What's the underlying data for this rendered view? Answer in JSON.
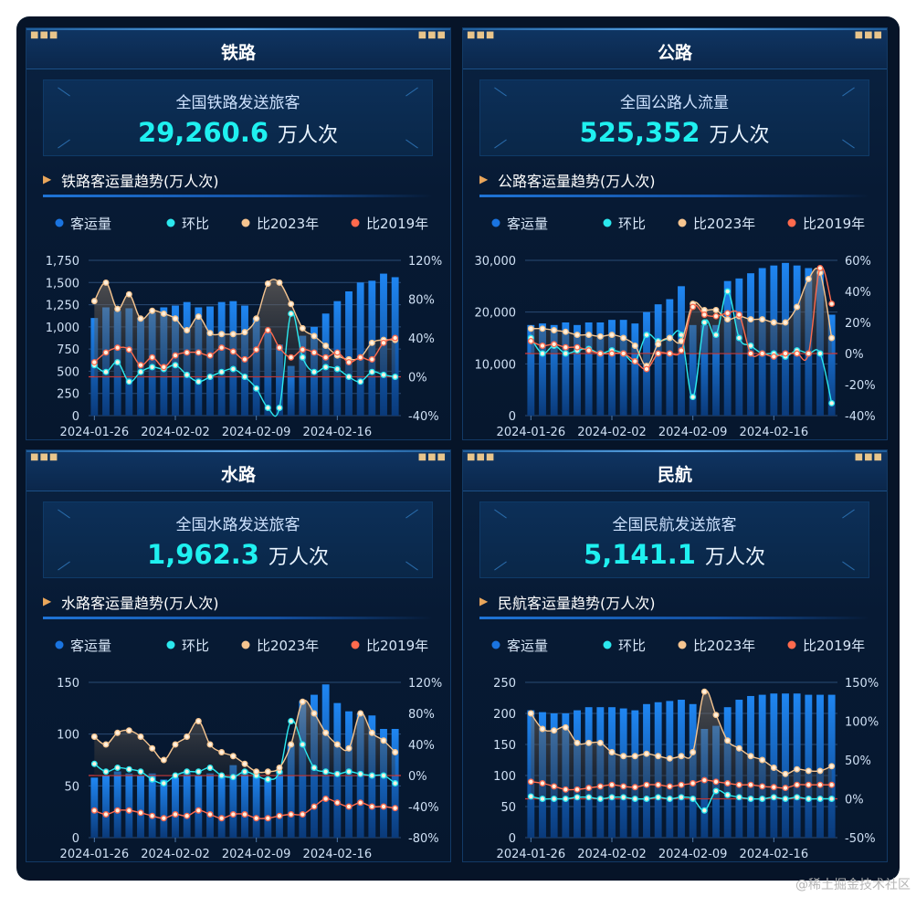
{
  "watermark": "@稀土掘金技术社区",
  "legend_labels": [
    "客运量",
    "环比",
    "比2023年",
    "比2019年"
  ],
  "colors": {
    "bar": "#1a74e0",
    "mom": "#2be8ee",
    "y2023": "#f6c590",
    "y2019": "#ff6a4d",
    "grid": "#2a4a74"
  },
  "panels": [
    {
      "title": "铁路",
      "stat_label": "全国铁路发送旅客",
      "stat_value": "29,260.6",
      "stat_unit": "万人次",
      "sub_title": "铁路客运量趋势(万人次)"
    },
    {
      "title": "公路",
      "stat_label": "全国公路人流量",
      "stat_value": "525,352",
      "stat_unit": "万人次",
      "sub_title": "公路客运量趋势(万人次)"
    },
    {
      "title": "水路",
      "stat_label": "全国水路发送旅客",
      "stat_value": "1,962.3",
      "stat_unit": "万人次",
      "sub_title": "水路客运量趋势(万人次)"
    },
    {
      "title": "民航",
      "stat_label": "全国民航发送旅客",
      "stat_value": "5,141.1",
      "stat_unit": "万人次",
      "sub_title": "民航客运量趋势(万人次)"
    }
  ],
  "chart_data": [
    {
      "type": "bar",
      "x_tick_labels": [
        "2024-01-26",
        "2024-02-02",
        "2024-02-09",
        "2024-02-16"
      ],
      "ylim": [
        0,
        1750
      ],
      "y_ticks": [
        "0",
        "250",
        "500",
        "750",
        "1,000",
        "1,250",
        "1,500",
        "1,750"
      ],
      "y2lim": [
        -40,
        120
      ],
      "y2_ticks": [
        "-40%",
        "0%",
        "40%",
        "80%",
        "120%"
      ],
      "series": [
        {
          "name": "客运量",
          "values": [
            1100,
            1220,
            1180,
            1210,
            1100,
            1160,
            1220,
            1240,
            1280,
            1220,
            1230,
            1280,
            1290,
            1240,
            1100,
            940,
            800,
            560,
            900,
            1000,
            1150,
            1290,
            1400,
            1500,
            1520,
            1600,
            1560
          ]
        },
        {
          "name": "环比",
          "values": [
            12,
            5,
            15,
            -5,
            5,
            10,
            8,
            12,
            2,
            -5,
            0,
            5,
            8,
            0,
            -12,
            -32,
            -32,
            65,
            20,
            5,
            10,
            8,
            0,
            -5,
            5,
            2,
            0
          ]
        },
        {
          "name": "比2023年",
          "values": [
            78,
            97,
            70,
            85,
            60,
            68,
            65,
            60,
            48,
            62,
            45,
            44,
            44,
            46,
            60,
            96,
            97,
            75,
            50,
            42,
            32,
            22,
            18,
            20,
            35,
            38,
            38
          ]
        },
        {
          "name": "比2019年",
          "values": [
            15,
            25,
            30,
            28,
            12,
            20,
            10,
            22,
            25,
            25,
            22,
            30,
            26,
            18,
            28,
            48,
            30,
            20,
            28,
            25,
            20,
            25,
            15,
            20,
            18,
            35,
            40
          ]
        }
      ]
    },
    {
      "type": "bar",
      "x_tick_labels": [
        "2024-01-26",
        "2024-02-02",
        "2024-02-09",
        "2024-02-16"
      ],
      "ylim": [
        0,
        30000
      ],
      "y_ticks": [
        "0",
        "10,000",
        "20,000",
        "30,000"
      ],
      "y2lim": [
        -40,
        60
      ],
      "y2_ticks": [
        "-40%",
        "-20%",
        "0%",
        "20%",
        "40%",
        "60%"
      ],
      "series": [
        {
          "name": "客运量",
          "values": [
            17500,
            17800,
            17500,
            18000,
            17500,
            18000,
            18000,
            18500,
            18500,
            17800,
            20000,
            21500,
            22500,
            25000,
            17500,
            17500,
            17500,
            26000,
            26500,
            27500,
            28500,
            29000,
            29500,
            29000,
            28500,
            28000,
            19500
          ]
        },
        {
          "name": "环比",
          "values": [
            10,
            0,
            5,
            0,
            2,
            3,
            0,
            2,
            0,
            -5,
            12,
            8,
            10,
            12,
            -28,
            20,
            12,
            40,
            10,
            5,
            0,
            0,
            -2,
            2,
            0,
            0,
            -32
          ]
        },
        {
          "name": "比2023年",
          "values": [
            16,
            16,
            15,
            14,
            12,
            12,
            11,
            12,
            10,
            5,
            -8,
            6,
            10,
            8,
            32,
            28,
            28,
            22,
            24,
            22,
            22,
            20,
            20,
            30,
            48,
            52,
            10
          ]
        },
        {
          "name": "比2019年",
          "values": [
            8,
            5,
            6,
            4,
            4,
            2,
            0,
            0,
            0,
            -5,
            -10,
            0,
            0,
            2,
            30,
            25,
            24,
            26,
            25,
            0,
            0,
            -2,
            0,
            0,
            0,
            55,
            32
          ]
        }
      ]
    },
    {
      "type": "bar",
      "x_tick_labels": [
        "2024-01-26",
        "2024-02-02",
        "2024-02-09",
        "2024-02-16"
      ],
      "ylim": [
        0,
        150
      ],
      "y_ticks": [
        "0",
        "50",
        "100",
        "150"
      ],
      "y2lim": [
        -80,
        120
      ],
      "y2_ticks": [
        "-80%",
        "-40%",
        "0%",
        "40%",
        "80%",
        "120%"
      ],
      "series": [
        {
          "name": "客运量",
          "values": [
            58,
            60,
            64,
            62,
            60,
            62,
            56,
            58,
            64,
            60,
            62,
            60,
            70,
            65,
            62,
            58,
            64,
            90,
            132,
            138,
            148,
            130,
            122,
            120,
            118,
            105,
            105
          ]
        },
        {
          "name": "环比",
          "values": [
            15,
            5,
            10,
            8,
            5,
            -5,
            -10,
            0,
            5,
            5,
            10,
            0,
            -2,
            5,
            0,
            -5,
            5,
            70,
            40,
            10,
            5,
            2,
            5,
            2,
            0,
            0,
            -10
          ]
        },
        {
          "name": "比2023年",
          "values": [
            50,
            40,
            55,
            58,
            50,
            35,
            20,
            40,
            50,
            70,
            40,
            30,
            25,
            15,
            5,
            5,
            10,
            40,
            95,
            80,
            55,
            40,
            35,
            80,
            55,
            45,
            30
          ]
        },
        {
          "name": "比2019年",
          "values": [
            -45,
            -50,
            -45,
            -45,
            -48,
            -52,
            -55,
            -50,
            -52,
            -45,
            -50,
            -55,
            -50,
            -50,
            -55,
            -55,
            -52,
            -50,
            -50,
            -40,
            -30,
            -35,
            -40,
            -35,
            -40,
            -40,
            -42
          ]
        }
      ]
    },
    {
      "type": "bar",
      "x_tick_labels": [
        "2024-01-26",
        "2024-02-02",
        "2024-02-09",
        "2024-02-16"
      ],
      "ylim": [
        0,
        250
      ],
      "y_ticks": [
        "0",
        "50",
        "100",
        "150",
        "200",
        "250"
      ],
      "y2lim": [
        -50,
        150
      ],
      "y2_ticks": [
        "-50%",
        "0%",
        "50%",
        "100%",
        "150%"
      ],
      "series": [
        {
          "name": "客运量",
          "values": [
            205,
            202,
            200,
            200,
            205,
            210,
            210,
            210,
            208,
            205,
            215,
            218,
            220,
            222,
            215,
            175,
            180,
            210,
            222,
            228,
            230,
            232,
            232,
            232,
            230,
            230,
            230
          ]
        },
        {
          "name": "环比",
          "values": [
            3,
            0,
            0,
            0,
            2,
            2,
            0,
            2,
            2,
            0,
            0,
            2,
            0,
            2,
            0,
            -15,
            10,
            5,
            2,
            0,
            0,
            2,
            0,
            2,
            0,
            0,
            0
          ]
        },
        {
          "name": "比2023年",
          "values": [
            110,
            90,
            88,
            92,
            72,
            72,
            72,
            60,
            55,
            55,
            58,
            55,
            52,
            55,
            60,
            138,
            108,
            75,
            65,
            55,
            50,
            40,
            32,
            38,
            36,
            36,
            42
          ]
        },
        {
          "name": "比2019年",
          "values": [
            22,
            20,
            16,
            12,
            12,
            14,
            16,
            18,
            16,
            15,
            18,
            18,
            16,
            18,
            20,
            24,
            22,
            20,
            18,
            18,
            16,
            15,
            14,
            18,
            18,
            18,
            18
          ]
        }
      ]
    }
  ]
}
